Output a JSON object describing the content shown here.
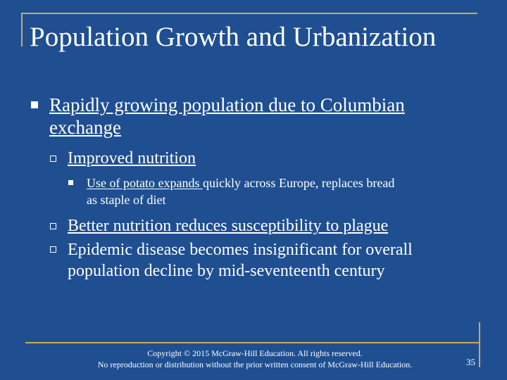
{
  "slide": {
    "title": "Population Growth and Urbanization",
    "bullets": {
      "b1_line1": "Rapidly growing population due to Columbian",
      "b1_line2": "exchange",
      "b2": "Improved nutrition",
      "b3_part1": "Use of potato expands ",
      "b3_part2": "quickly across Europe, replaces bread",
      "b3_line2": "as staple of diet",
      "b4": "Better nutrition reduces susceptibility to plague",
      "b5_line1": "Epidemic disease becomes insignificant for overall",
      "b5_line2": "population decline by mid-seventeenth century"
    },
    "footer_line1": "Copyright © 2015 McGraw-Hill Education. All rights reserved.",
    "footer_line2": "No reproduction or distribution without the prior written consent of McGraw-Hill Education.",
    "page_number": "35"
  },
  "colors": {
    "background": "#1f4f91",
    "accent": "#c8aa5f",
    "text": "#ffffff"
  }
}
